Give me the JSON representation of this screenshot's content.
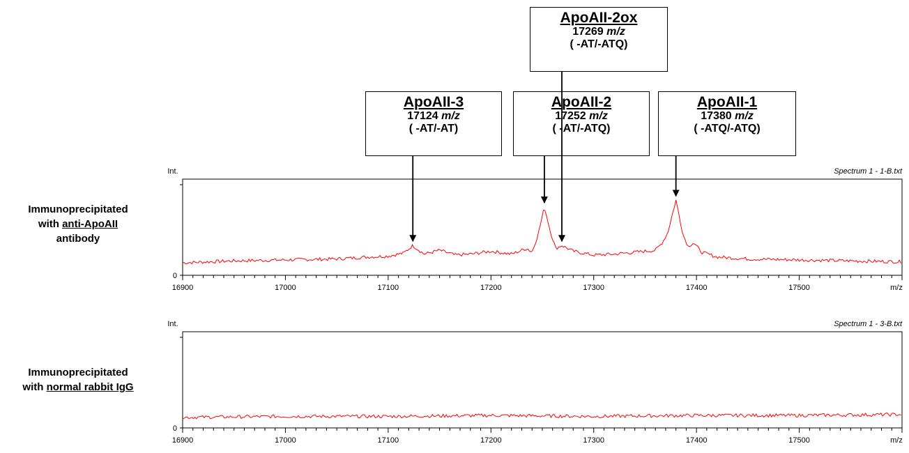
{
  "side_labels": {
    "panel1": {
      "line1": "Immunoprecipitated",
      "line2_prefix": "with ",
      "line2_underlined": "anti-ApoAII",
      "line3": "antibody"
    },
    "panel2": {
      "line1": "Immunoprecipitated",
      "line2_prefix": "with ",
      "line2_underlined": "normal rabbit IgG"
    }
  },
  "peak_boxes": [
    {
      "name": "ApoAII-2ox",
      "mz_value": "17269",
      "mz_unit": "m/z",
      "fragment": "( -AT/-ATQ)",
      "arrow_mz": 17269
    },
    {
      "name": "ApoAII-3",
      "mz_value": "17124",
      "mz_unit": "m/z",
      "fragment": "( -AT/-AT)",
      "arrow_mz": 17124
    },
    {
      "name": "ApoAII-2",
      "mz_value": "17252",
      "mz_unit": "m/z",
      "fragment": "( -AT/-ATQ)",
      "arrow_mz": 17252
    },
    {
      "name": "ApoAII-1",
      "mz_value": "17380",
      "mz_unit": "m/z",
      "fragment": "( -ATQ/-ATQ)",
      "arrow_mz": 17380
    }
  ],
  "chart_data": [
    {
      "type": "line",
      "title": "Spectrum 1 - 1-B.txt",
      "ylabel": "Int.",
      "xlabel": "m/z",
      "xlim": [
        16900,
        17600
      ],
      "ylim": [
        0,
        1
      ],
      "x_ticks": [
        "16900",
        "17000",
        "17100",
        "17200",
        "17300",
        "17400",
        "17500"
      ],
      "y_ticks": [
        "0"
      ],
      "line_color": "#ff0000",
      "series": [
        {
          "x": [
            16900,
            16950,
            17000,
            17050,
            17080,
            17100,
            17115,
            17124,
            17135,
            17150,
            17165,
            17180,
            17200,
            17220,
            17235,
            17240,
            17246,
            17252,
            17258,
            17263,
            17269,
            17280,
            17300,
            17320,
            17340,
            17360,
            17366,
            17372,
            17380,
            17387,
            17392,
            17397,
            17405,
            17420,
            17450,
            17500,
            17550,
            17600
          ],
          "y": [
            0.13,
            0.15,
            0.16,
            0.17,
            0.19,
            0.2,
            0.23,
            0.31,
            0.22,
            0.26,
            0.21,
            0.22,
            0.25,
            0.22,
            0.28,
            0.24,
            0.43,
            0.71,
            0.45,
            0.28,
            0.31,
            0.25,
            0.21,
            0.22,
            0.24,
            0.26,
            0.33,
            0.44,
            0.78,
            0.42,
            0.3,
            0.34,
            0.24,
            0.19,
            0.17,
            0.16,
            0.15,
            0.14
          ]
        }
      ]
    },
    {
      "type": "line",
      "title": "Spectrum 1 - 3-B.txt",
      "ylabel": "Int.",
      "xlabel": "m/z",
      "xlim": [
        16900,
        17600
      ],
      "ylim": [
        0,
        1
      ],
      "x_ticks": [
        "16900",
        "17000",
        "17100",
        "17200",
        "17300",
        "17400",
        "17500"
      ],
      "y_ticks": [
        "0"
      ],
      "line_color": "#ff0000",
      "series": [
        {
          "x": [
            16900,
            17000,
            17100,
            17200,
            17300,
            17400,
            17500,
            17600
          ],
          "y": [
            0.11,
            0.12,
            0.12,
            0.13,
            0.12,
            0.13,
            0.13,
            0.14
          ]
        }
      ]
    }
  ]
}
